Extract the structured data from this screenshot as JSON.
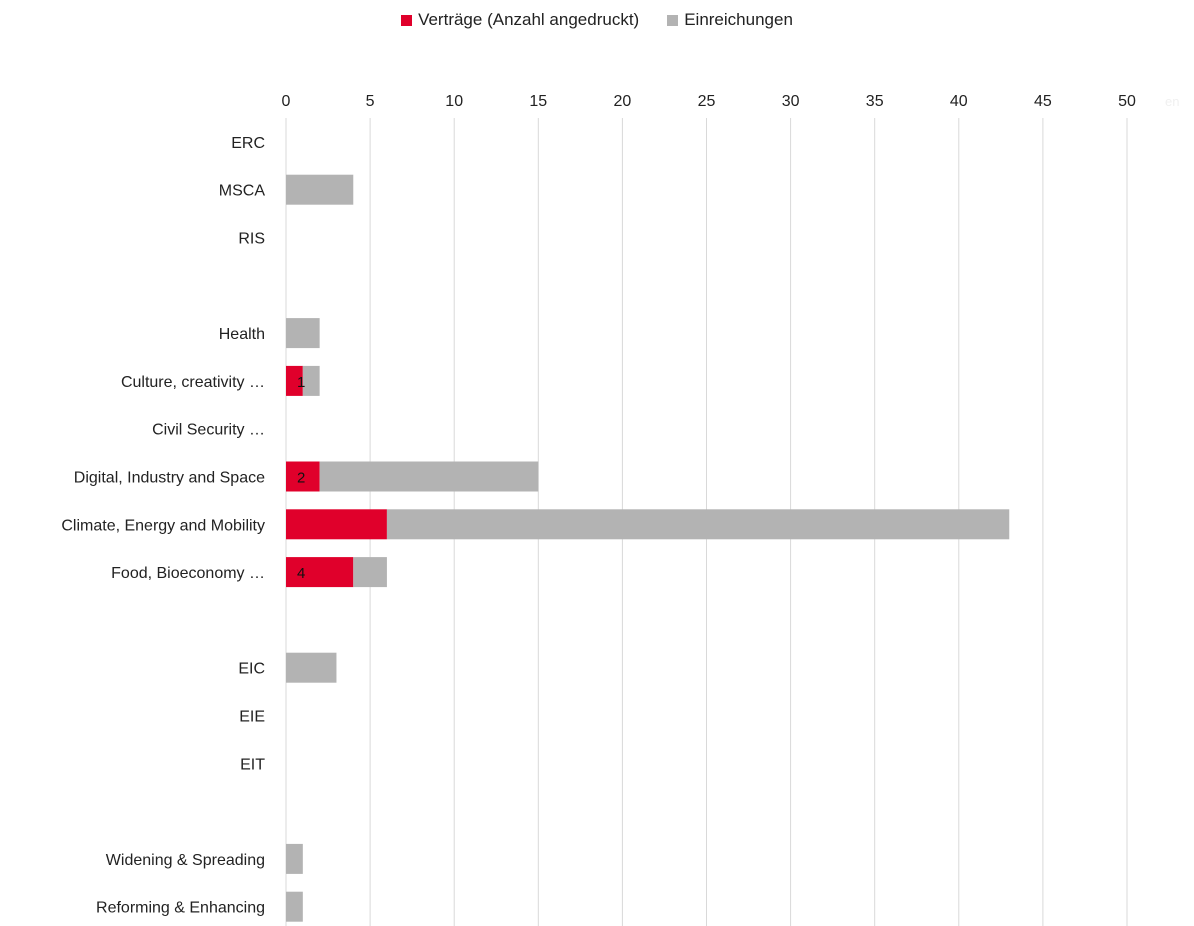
{
  "chart_data": {
    "type": "bar",
    "orientation": "horizontal",
    "stacked": true,
    "categories": [
      "ERC",
      "MSCA",
      "RIS",
      "",
      "Health",
      "Culture, creativity …",
      "Civil Security …",
      "Digital, Industry and Space",
      "Climate, Energy and Mobility",
      "Food, Bioeconomy …",
      "",
      "EIC",
      "EIE",
      "EIT",
      "",
      "Widening & Spreading",
      "Reforming & Enhancing"
    ],
    "series": [
      {
        "name": "Verträge (Anzahl angedruckt)",
        "color": "#e0002b",
        "values": [
          0,
          0,
          0,
          0,
          0,
          1,
          0,
          2,
          6,
          4,
          0,
          0,
          0,
          0,
          0,
          0,
          0
        ],
        "data_labels": [
          "",
          "",
          "",
          "",
          "",
          "1",
          "",
          "2",
          "",
          "4",
          "",
          "",
          "",
          "",
          "",
          "",
          ""
        ]
      },
      {
        "name": "Einreichungen",
        "color": "#b3b3b3",
        "values": [
          0,
          4,
          0,
          0,
          2,
          1,
          0,
          13,
          37,
          2,
          0,
          3,
          0,
          0,
          0,
          1,
          1
        ]
      }
    ],
    "xlim": [
      0,
      50
    ],
    "xticks": [
      0,
      5,
      10,
      15,
      20,
      25,
      30,
      35,
      40,
      45,
      50
    ],
    "x_axis_position": "top",
    "grid": true,
    "legend_position": "top-center",
    "ghost_label": "en"
  }
}
